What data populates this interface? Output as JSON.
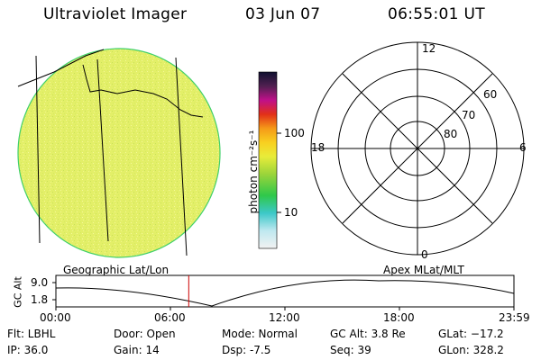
{
  "header": {
    "instrument": "Ultraviolet Imager",
    "date": "03 Jun 07",
    "time": "06:55:01 UT"
  },
  "colorbar": {
    "unit_label": "photon cm⁻²s⁻¹",
    "ticks": [
      "100",
      "10"
    ],
    "scale": "log"
  },
  "polar": {
    "mlt_labels": {
      "top": "12",
      "right": "6",
      "bottom": "0",
      "left": "18"
    },
    "lat_labels": [
      "80",
      "70",
      "60"
    ]
  },
  "timeline": {
    "left_title": "Geographic Lat/Lon",
    "right_title": "Apex  MLat/MLT",
    "ylabel": "GC Alt",
    "yticks": [
      "9.0",
      "1.8"
    ],
    "xticks": [
      "00:00",
      "06:00",
      "12:00",
      "18:00",
      "23:59"
    ],
    "marker_fraction": 0.29
  },
  "info": {
    "filter": "Flt: LBHL",
    "ip": "IP: 36.0",
    "door": "Door: Open",
    "gain": "Gain: 14",
    "mode": "Mode: Normal",
    "dsp": "Dsp:    -7.5",
    "gc_alt": "GC Alt: 3.8 Re",
    "seq": "Seq: 39",
    "glat": "GLat: −17.2",
    "glon": "GLon: 328.2"
  },
  "colors": {
    "disk": "#e6f06a",
    "timeline_marker": "#cc0000"
  }
}
